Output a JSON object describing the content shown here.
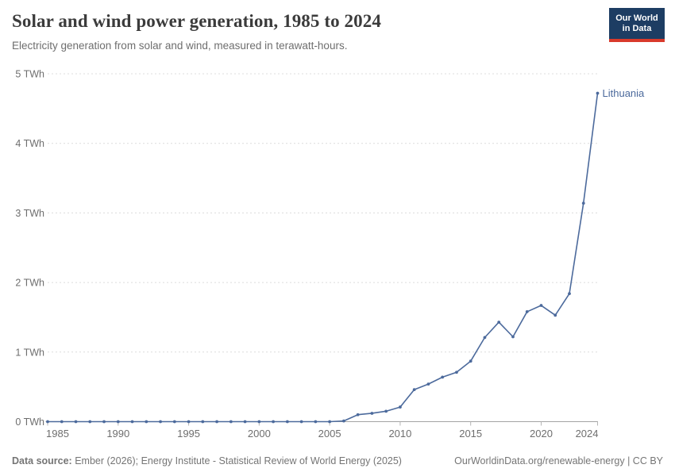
{
  "header": {
    "title": "Solar and wind power generation, 1985 to 2024",
    "subtitle": "Electricity generation from solar and wind, measured in terawatt-hours.",
    "logo": {
      "line1": "Our World",
      "line2": "in Data"
    }
  },
  "chart_data": {
    "type": "line",
    "title": "Solar and wind power generation, 1985 to 2024",
    "unit": "TWh",
    "x": [
      1985,
      1986,
      1987,
      1988,
      1989,
      1990,
      1991,
      1992,
      1993,
      1994,
      1995,
      1996,
      1997,
      1998,
      1999,
      2000,
      2001,
      2002,
      2003,
      2004,
      2005,
      2006,
      2007,
      2008,
      2009,
      2010,
      2011,
      2012,
      2013,
      2014,
      2015,
      2016,
      2017,
      2018,
      2019,
      2020,
      2021,
      2022,
      2023,
      2024
    ],
    "series": [
      {
        "name": "Lithuania",
        "color": "#4C6A9C",
        "values": [
          0,
          0,
          0,
          0,
          0,
          0,
          0,
          0,
          0,
          0,
          0,
          0,
          0,
          0,
          0,
          0,
          0,
          0,
          0,
          0,
          0,
          0.01,
          0.1,
          0.12,
          0.15,
          0.21,
          0.46,
          0.54,
          0.64,
          0.71,
          0.87,
          1.21,
          1.43,
          1.22,
          1.58,
          1.67,
          1.53,
          1.84,
          3.14,
          4.72
        ]
      }
    ],
    "xlabel": "",
    "ylabel": "",
    "xlim": [
      1985,
      2024
    ],
    "ylim": [
      0,
      5
    ],
    "xticks": [
      1985,
      1990,
      1995,
      2000,
      2005,
      2010,
      2015,
      2020,
      2024
    ],
    "yticks": [
      {
        "value": 0,
        "label": "0 TWh"
      },
      {
        "value": 1,
        "label": "1 TWh"
      },
      {
        "value": 2,
        "label": "2 TWh"
      },
      {
        "value": 3,
        "label": "3 TWh"
      },
      {
        "value": 4,
        "label": "4 TWh"
      },
      {
        "value": 5,
        "label": "5 TWh"
      }
    ],
    "grid": "horizontal-dashed",
    "legend_position": "end-of-line-label",
    "colors": {
      "line": "#4C6A9C",
      "gridline": "#dcdcdc",
      "axis": "#a3a3a3",
      "tick_text": "#6e6e6e"
    }
  },
  "footer": {
    "datasource_label": "Data source:",
    "datasource_text": " Ember (2026); Energy Institute - Statistical Review of World Energy (2025)",
    "link_text": "OurWorldinData.org/renewable-energy | CC BY"
  }
}
